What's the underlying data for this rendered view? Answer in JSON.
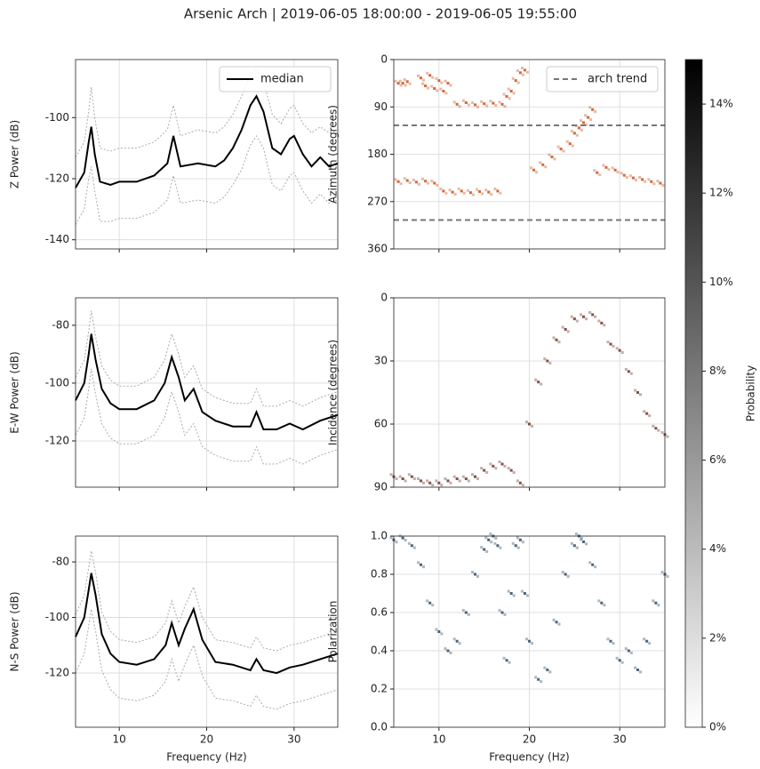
{
  "title": "Arsenic Arch | 2019-06-05 18:00:00 - 2019-06-05 19:55:00",
  "chart_data": [
    {
      "type": "line",
      "ylabel": "Z Power (dB)",
      "xlim": [
        5,
        35
      ],
      "xticks": [
        10,
        20,
        30
      ],
      "ylim": [
        -143,
        -81
      ],
      "yticks": [
        -140,
        -120,
        -100
      ],
      "grid": true,
      "legend": "upper right",
      "x": [
        5,
        6,
        6.5,
        6.8,
        7.2,
        7.8,
        9,
        10,
        12,
        14,
        15.5,
        16.2,
        17,
        19,
        21,
        22,
        23,
        24,
        25,
        25.7,
        26.5,
        27.5,
        28.5,
        29.5,
        30,
        31,
        32,
        33,
        34,
        35
      ],
      "series": [
        {
          "color": "#aaaaaa",
          "values": [
            -113,
            -108,
            -98,
            -90,
            -100,
            -110,
            -111,
            -110,
            -110,
            -108,
            -104,
            -96,
            -106,
            -104,
            -105,
            -103,
            -99,
            -93,
            -86,
            -84,
            -88,
            -99,
            -102,
            -97,
            -96,
            -102,
            -105,
            -103,
            -105,
            -104
          ]
        },
        {
          "color": "#aaaaaa",
          "values": [
            -135,
            -130,
            -120,
            -116,
            -124,
            -134,
            -134,
            -133,
            -133,
            -131,
            -127,
            -119,
            -128,
            -127,
            -128,
            -126,
            -122,
            -117,
            -109,
            -106,
            -110,
            -122,
            -124,
            -119,
            -118,
            -124,
            -128,
            -125,
            -128,
            -127
          ]
        },
        {
          "name": "median",
          "color": "#000000",
          "values": [
            -123,
            -118,
            -108,
            -103,
            -112,
            -121,
            -122,
            -121,
            -121,
            -119,
            -115,
            -106,
            -116,
            -115,
            -116,
            -114,
            -110,
            -104,
            -96,
            -93,
            -98,
            -110,
            -112,
            -107,
            -106,
            -112,
            -116,
            -113,
            -116,
            -115
          ]
        }
      ]
    },
    {
      "type": "scatter",
      "ylabel": "Azimuth (degrees)",
      "xlim": [
        5,
        35
      ],
      "xticks": [
        10,
        20,
        30
      ],
      "ylim": [
        360,
        0
      ],
      "yticks": [
        0,
        90,
        180,
        270,
        360
      ],
      "grid": true,
      "color": "#c9501c",
      "legend": "upper right",
      "x": [
        5.5,
        6,
        6.5,
        8,
        8.5,
        9,
        9.5,
        10,
        10.5,
        11,
        12,
        13,
        14,
        15,
        16,
        17,
        17.5,
        18,
        18.5,
        19,
        19.5,
        5.5,
        6.5,
        7.5,
        8.5,
        9.5,
        10.5,
        11.5,
        12.5,
        13.5,
        14.5,
        15.5,
        16.5,
        20.5,
        21.5,
        22.5,
        23.5,
        24.5,
        25,
        25.5,
        26,
        26.5,
        27,
        27.5,
        28.5,
        29.5,
        30.5,
        31.5,
        32.5,
        33.5,
        34.5
      ],
      "values": [
        45,
        45,
        42,
        35,
        50,
        30,
        55,
        40,
        60,
        45,
        85,
        82,
        86,
        84,
        83,
        85,
        70,
        60,
        40,
        25,
        20,
        232,
        230,
        233,
        231,
        235,
        250,
        252,
        250,
        253,
        251,
        252,
        250,
        210,
        200,
        185,
        170,
        160,
        140,
        130,
        120,
        110,
        95,
        215,
        205,
        210,
        220,
        225,
        228,
        232,
        235
      ],
      "hlines": {
        "name": "arch trend",
        "color": "#777777",
        "values": [
          125,
          305
        ]
      }
    },
    {
      "type": "line",
      "ylabel": "E-W Power (dB)",
      "xlim": [
        5,
        35
      ],
      "xticks": [
        10,
        20,
        30
      ],
      "ylim": [
        -136,
        -70.5
      ],
      "yticks": [
        -120,
        -100,
        -80
      ],
      "grid": true,
      "x": [
        5,
        6,
        6.5,
        6.8,
        7.3,
        8,
        9,
        10,
        12,
        14,
        15.2,
        16,
        16.8,
        17.5,
        18.5,
        19.5,
        21,
        23,
        25,
        25.7,
        26.5,
        28,
        29.5,
        31,
        33,
        35
      ],
      "series": [
        {
          "color": "#aaaaaa",
          "values": [
            -98,
            -92,
            -82,
            -75,
            -84,
            -94,
            -99,
            -101,
            -101,
            -98,
            -92,
            -83,
            -90,
            -98,
            -94,
            -102,
            -105,
            -107,
            -107,
            -102,
            -108,
            -108,
            -106,
            -108,
            -105,
            -103
          ]
        },
        {
          "color": "#aaaaaa",
          "values": [
            -118,
            -112,
            -102,
            -95,
            -104,
            -114,
            -119,
            -121,
            -121,
            -118,
            -112,
            -103,
            -110,
            -118,
            -114,
            -122,
            -125,
            -127,
            -127,
            -122,
            -128,
            -128,
            -126,
            -128,
            -125,
            -123
          ]
        },
        {
          "color": "#000000",
          "values": [
            -106,
            -100,
            -90,
            -83,
            -92,
            -102,
            -107,
            -109,
            -109,
            -106,
            -100,
            -91,
            -98,
            -106,
            -102,
            -110,
            -113,
            -115,
            -115,
            -110,
            -116,
            -116,
            -114,
            -116,
            -113,
            -111
          ]
        }
      ]
    },
    {
      "type": "scatter",
      "ylabel": "Incidence (degrees)",
      "xlim": [
        5,
        35
      ],
      "xticks": [
        10,
        20,
        30
      ],
      "ylim": [
        90,
        0
      ],
      "yticks": [
        0,
        30,
        60,
        90
      ],
      "grid": true,
      "color": "#6e3328",
      "x": [
        5,
        6,
        7,
        8,
        9,
        10,
        11,
        12,
        13,
        14,
        15,
        16,
        17,
        18,
        19,
        20,
        21,
        22,
        23,
        24,
        25,
        26,
        27,
        28,
        29,
        30,
        31,
        32,
        33,
        34,
        35
      ],
      "values": [
        85,
        86,
        85,
        87,
        88,
        88,
        87,
        86,
        86,
        85,
        82,
        80,
        79,
        82,
        88,
        60,
        40,
        30,
        20,
        15,
        10,
        9,
        8,
        12,
        22,
        25,
        35,
        45,
        55,
        62,
        65
      ]
    },
    {
      "type": "line",
      "ylabel": "N-S Power (dB)",
      "xlabel": "Frequency (Hz)",
      "xlim": [
        5,
        35
      ],
      "xticks": [
        10,
        20,
        30
      ],
      "ylim": [
        -139.5,
        -70.7
      ],
      "yticks": [
        -120,
        -100,
        -80
      ],
      "grid": true,
      "x": [
        5,
        6,
        6.5,
        6.8,
        7.3,
        8,
        9,
        10,
        12,
        14,
        15.3,
        16,
        16.8,
        17.5,
        18.5,
        19.5,
        21,
        23,
        25,
        25.7,
        26.5,
        28,
        29.5,
        31,
        33,
        35
      ],
      "series": [
        {
          "color": "#aaaaaa",
          "values": [
            -99,
            -92,
            -82,
            -76,
            -84,
            -98,
            -105,
            -108,
            -109,
            -107,
            -102,
            -94,
            -102,
            -96,
            -89,
            -100,
            -108,
            -109,
            -111,
            -107,
            -111,
            -112,
            -110,
            -109,
            -107,
            -105
          ]
        },
        {
          "color": "#aaaaaa",
          "values": [
            -120,
            -113,
            -103,
            -97,
            -105,
            -119,
            -126,
            -129,
            -130,
            -128,
            -123,
            -115,
            -123,
            -117,
            -110,
            -121,
            -129,
            -130,
            -132,
            -128,
            -132,
            -133,
            -131,
            -130,
            -128,
            -126
          ]
        },
        {
          "color": "#000000",
          "values": [
            -107,
            -100,
            -90,
            -84,
            -92,
            -106,
            -113,
            -116,
            -117,
            -115,
            -110,
            -102,
            -110,
            -104,
            -97,
            -108,
            -116,
            -117,
            -119,
            -115,
            -119,
            -120,
            -118,
            -117,
            -115,
            -113
          ]
        }
      ]
    },
    {
      "type": "scatter",
      "ylabel": "Polarization",
      "xlabel": "Frequency (Hz)",
      "xlim": [
        5,
        35
      ],
      "xticks": [
        10,
        20,
        30
      ],
      "ylim": [
        0,
        1
      ],
      "yticks": [
        {
          "value": 0,
          "label": "0.0"
        },
        0.2,
        0.4,
        0.6,
        0.8,
        {
          "value": 1,
          "label": "1.0"
        }
      ],
      "grid": true,
      "color": "#2c4a63",
      "x": [
        5,
        6,
        7,
        8,
        9,
        10,
        11,
        12,
        13,
        14,
        15,
        15.5,
        16,
        16.5,
        17,
        17.5,
        18,
        18.5,
        19,
        19.5,
        20,
        21,
        22,
        23,
        24,
        25,
        25.5,
        26,
        27,
        28,
        29,
        30,
        31,
        32,
        33,
        34,
        35
      ],
      "values": [
        0.98,
        0.99,
        0.95,
        0.85,
        0.65,
        0.5,
        0.4,
        0.45,
        0.6,
        0.8,
        0.93,
        0.98,
        1.0,
        0.95,
        0.6,
        0.35,
        0.7,
        0.95,
        0.98,
        0.7,
        0.45,
        0.25,
        0.3,
        0.55,
        0.8,
        0.95,
        1.0,
        0.97,
        0.85,
        0.65,
        0.45,
        0.35,
        0.4,
        0.3,
        0.45,
        0.65,
        0.8
      ]
    },
    {
      "type": "colorbar",
      "ylabel": "Probability",
      "ylim": [
        0,
        15
      ],
      "colors": [
        "#ffffff",
        "#000000"
      ],
      "yticks": [
        {
          "value": 0,
          "label": "0%"
        },
        {
          "value": 2,
          "label": "2%"
        },
        {
          "value": 4,
          "label": "4%"
        },
        {
          "value": 6,
          "label": "6%"
        },
        {
          "value": 8,
          "label": "8%"
        },
        {
          "value": 10,
          "label": "10%"
        },
        {
          "value": 12,
          "label": "12%"
        },
        {
          "value": 14,
          "label": "14%"
        }
      ]
    }
  ]
}
